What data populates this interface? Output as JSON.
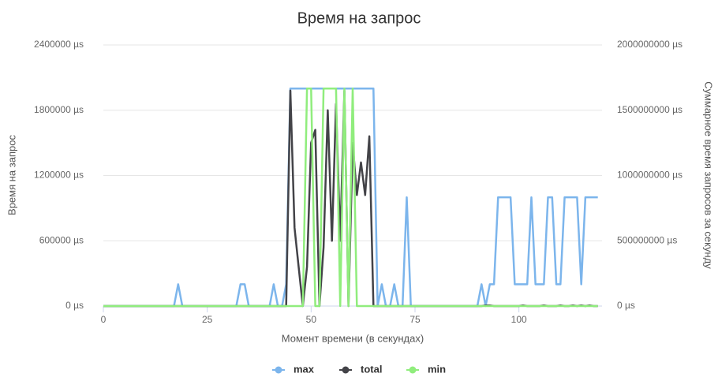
{
  "chart_data": {
    "type": "line",
    "title": "Время на запрос",
    "x_label": "Момент времени (в секундах)",
    "y_label": "Время на запрос",
    "y2_label": "Суммарное время запросов за секунду",
    "xlim": [
      0,
      120
    ],
    "xticks": [
      0,
      25,
      50,
      75,
      100
    ],
    "ylim": [
      0,
      2400000
    ],
    "yticks": [
      {
        "value": 0,
        "label": "0 µs"
      },
      {
        "value": 600000,
        "label": "600000 µs"
      },
      {
        "value": 1200000,
        "label": "1200000 µs"
      },
      {
        "value": 1800000,
        "label": "1800000 µs"
      },
      {
        "value": 2400000,
        "label": "2400000 µs"
      }
    ],
    "y2lim": [
      0,
      2000000000
    ],
    "y2ticks": [
      {
        "value": 0,
        "label": "0 µs"
      },
      {
        "value": 500000000,
        "label": "500000000 µs"
      },
      {
        "value": 1000000000,
        "label": "1000000000 µs"
      },
      {
        "value": 1500000000,
        "label": "1500000000 µs"
      },
      {
        "value": 2000000000,
        "label": "2000000000 µs"
      }
    ],
    "grid": true,
    "legend": "bottom",
    "x": [
      0,
      1,
      2,
      3,
      4,
      5,
      6,
      7,
      8,
      9,
      10,
      11,
      12,
      13,
      14,
      15,
      16,
      17,
      18,
      19,
      20,
      21,
      22,
      23,
      24,
      25,
      26,
      27,
      28,
      29,
      30,
      31,
      32,
      33,
      34,
      35,
      36,
      37,
      38,
      39,
      40,
      41,
      42,
      43,
      44,
      45,
      46,
      47,
      48,
      49,
      50,
      51,
      52,
      53,
      54,
      55,
      56,
      57,
      58,
      59,
      60,
      61,
      62,
      63,
      64,
      65,
      66,
      67,
      68,
      69,
      70,
      71,
      72,
      73,
      74,
      75,
      76,
      77,
      78,
      79,
      80,
      81,
      82,
      83,
      84,
      85,
      86,
      87,
      88,
      89,
      90,
      91,
      92,
      93,
      94,
      95,
      96,
      97,
      98,
      99,
      100,
      101,
      102,
      103,
      104,
      105,
      106,
      107,
      108,
      109,
      110,
      111,
      112,
      113,
      114,
      115,
      116,
      117,
      118,
      119
    ],
    "series": [
      {
        "name": "max",
        "color": "#7cb5ec",
        "axis": "y",
        "values": [
          0,
          0,
          0,
          0,
          0,
          0,
          0,
          0,
          0,
          0,
          0,
          0,
          0,
          0,
          0,
          0,
          0,
          0,
          200000,
          0,
          0,
          0,
          0,
          0,
          0,
          0,
          0,
          0,
          0,
          0,
          0,
          0,
          0,
          200000,
          200000,
          0,
          0,
          0,
          0,
          0,
          0,
          200000,
          0,
          0,
          200000,
          2000000,
          2000000,
          2000000,
          2000000,
          2000000,
          2000000,
          2000000,
          2000000,
          2000000,
          2000000,
          2000000,
          2000000,
          2000000,
          2000000,
          2000000,
          2000000,
          2000000,
          2000000,
          2000000,
          2000000,
          2000000,
          0,
          200000,
          0,
          0,
          200000,
          0,
          0,
          1000000,
          0,
          0,
          0,
          0,
          0,
          0,
          0,
          0,
          0,
          0,
          0,
          0,
          0,
          0,
          0,
          0,
          0,
          200000,
          0,
          200000,
          200000,
          1000000,
          1000000,
          1000000,
          1000000,
          200000,
          200000,
          200000,
          200000,
          1000000,
          200000,
          200000,
          200000,
          1000000,
          1000000,
          200000,
          200000,
          1000000,
          1000000,
          1000000,
          1000000,
          200000,
          1000000,
          1000000,
          1000000,
          1000000
        ]
      },
      {
        "name": "total",
        "color": "#434348",
        "axis": "y2",
        "values": [
          0,
          0,
          0,
          0,
          0,
          0,
          0,
          0,
          0,
          0,
          0,
          0,
          0,
          0,
          0,
          0,
          0,
          0,
          0,
          0,
          0,
          0,
          0,
          0,
          0,
          0,
          0,
          0,
          0,
          0,
          0,
          0,
          0,
          0,
          0,
          0,
          0,
          0,
          0,
          0,
          0,
          0,
          0,
          0,
          0,
          1650000000,
          600000000,
          300000000,
          0,
          300000000,
          1250000000,
          1350000000,
          0,
          450000000,
          1500000000,
          500000000,
          1550000000,
          500000000,
          1650000000,
          0,
          1250000000,
          850000000,
          1100000000,
          850000000,
          1300000000,
          0,
          0,
          0,
          0,
          0,
          0,
          0,
          0,
          0,
          0,
          0,
          0,
          0,
          0,
          0,
          0,
          0,
          0,
          0,
          0,
          0,
          0,
          0,
          0,
          0,
          0,
          0,
          5000000,
          5000000,
          0,
          0,
          0,
          0,
          0,
          0,
          0,
          5000000,
          0,
          0,
          0,
          0,
          5000000,
          0,
          0,
          0,
          5000000,
          0,
          0,
          5000000,
          0,
          5000000,
          0,
          5000000,
          0,
          0
        ]
      },
      {
        "name": "min",
        "color": "#90ed7d",
        "axis": "y",
        "values": [
          0,
          0,
          0,
          0,
          0,
          0,
          0,
          0,
          0,
          0,
          0,
          0,
          0,
          0,
          0,
          0,
          0,
          0,
          0,
          0,
          0,
          0,
          0,
          0,
          0,
          0,
          0,
          0,
          0,
          0,
          0,
          0,
          0,
          0,
          0,
          0,
          0,
          0,
          0,
          0,
          0,
          0,
          0,
          0,
          0,
          0,
          0,
          0,
          0,
          2000000,
          2000000,
          0,
          0,
          2000000,
          2000000,
          2000000,
          2000000,
          0,
          2000000,
          0,
          2000000,
          0,
          0,
          0,
          0,
          0,
          0,
          0,
          0,
          0,
          0,
          0,
          0,
          0,
          0,
          0,
          0,
          0,
          0,
          0,
          0,
          0,
          0,
          0,
          0,
          0,
          0,
          0,
          0,
          0,
          0,
          0,
          0,
          0,
          0,
          0,
          0,
          0,
          0,
          0,
          0,
          0,
          0,
          0,
          0,
          0,
          0,
          0,
          0,
          0,
          0,
          0,
          0,
          0,
          0,
          0,
          0,
          0,
          0,
          0
        ]
      }
    ]
  }
}
